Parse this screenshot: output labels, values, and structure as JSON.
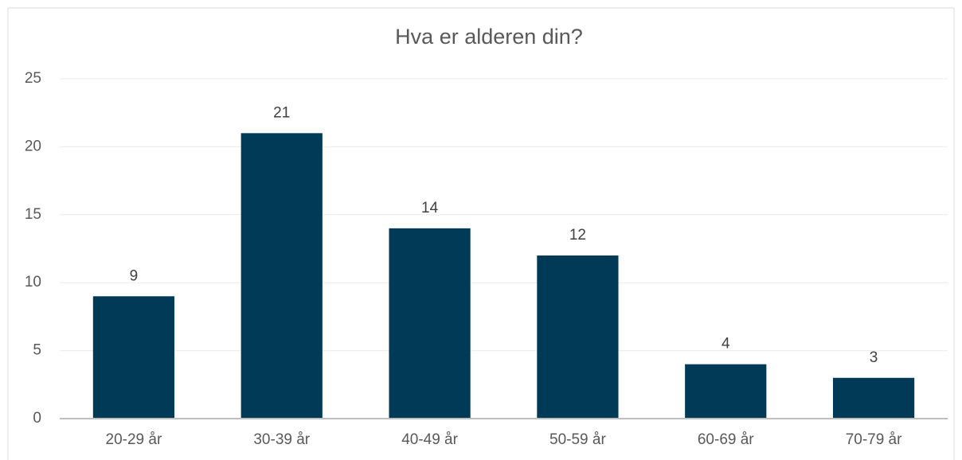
{
  "chart_data": {
    "type": "bar",
    "title": "Hva er alderen din?",
    "categories": [
      "20-29 år",
      "30-39 år",
      "40-49 år",
      "50-59 år",
      "60-69 år",
      "70-79 år"
    ],
    "values": [
      9,
      21,
      14,
      12,
      4,
      3
    ],
    "color": "#003a57",
    "ylim": [
      0,
      25
    ],
    "yticks": [
      0,
      5,
      10,
      15,
      20,
      25
    ],
    "grid": true
  }
}
